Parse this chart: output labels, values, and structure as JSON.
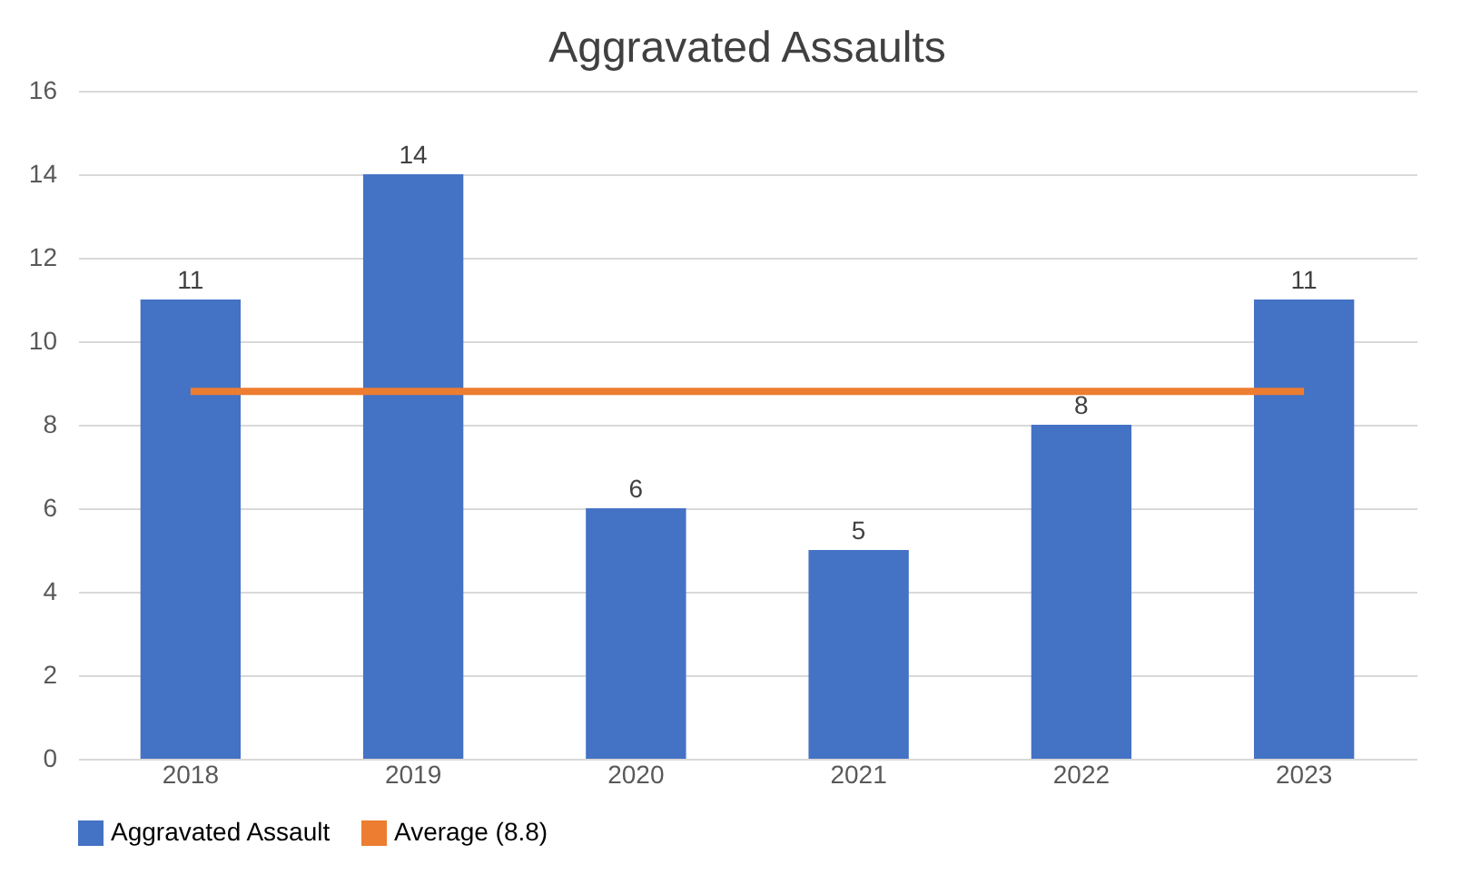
{
  "chart_data": {
    "type": "bar",
    "title": "Aggravated Assaults",
    "categories": [
      "2018",
      "2019",
      "2020",
      "2021",
      "2022",
      "2023"
    ],
    "series": [
      {
        "name": "Aggravated Assault",
        "color": "#4472c4",
        "values": [
          11,
          14,
          6,
          5,
          8,
          11
        ],
        "value_labels": [
          "11",
          "14",
          "6",
          "5",
          "8",
          "11"
        ]
      },
      {
        "name": "Average (8.8)",
        "type": "line",
        "color": "#ed7d31",
        "values": [
          8.8,
          8.8,
          8.8,
          8.8,
          8.8,
          8.8
        ]
      }
    ],
    "ylim": [
      0,
      16
    ],
    "yticks": [
      0,
      2,
      4,
      6,
      8,
      10,
      12,
      14,
      16
    ],
    "grid": "y",
    "legend": "bottom"
  }
}
